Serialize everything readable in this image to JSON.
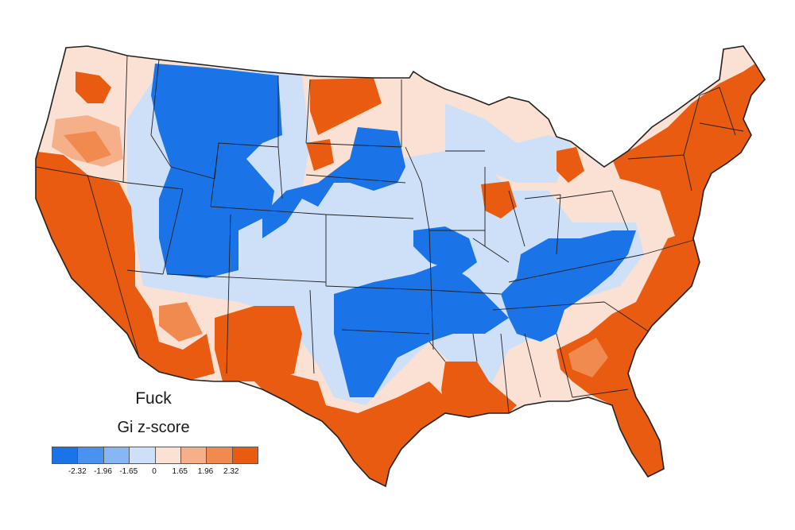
{
  "map": {
    "title": "Fuck",
    "legend": {
      "title": "Gi z-score",
      "colors": [
        "#1a74e8",
        "#4a92ef",
        "#86b6f3",
        "#cde0f8",
        "#fbe1d3",
        "#f5b08a",
        "#f08a4f",
        "#e85b10"
      ],
      "ticks": [
        "-2.32",
        "-1.96",
        "-1.65",
        "0",
        "1.65",
        "1.96",
        "2.32"
      ]
    },
    "palette": {
      "strong_negative": "#1a74e8",
      "light_negative": "#cde0f8",
      "light_positive": "#fbe1d3",
      "strong_positive": "#e85b10",
      "state_border": "#222222"
    }
  }
}
